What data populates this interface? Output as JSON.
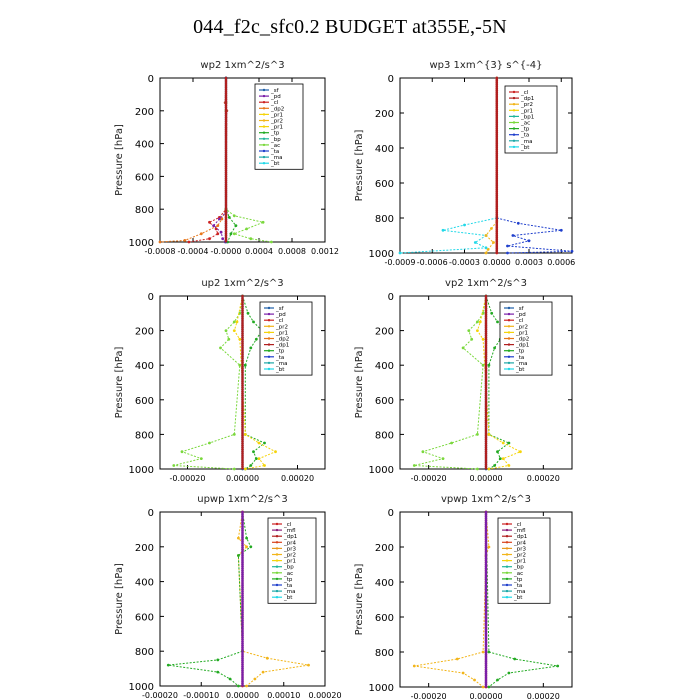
{
  "title": "044_f2c_sfc0.2  BUDGET at355E,-5N",
  "colors": {
    "_sf": "#1f5fa8",
    "_pd": "#7a1fa8",
    "_cl": "#cc2222",
    "_dp2": "#e8761a",
    "_pr1": "#f5d40a",
    "_pr2": "#f2b51a",
    "_tp": "#22aa22",
    "_bp": "#1fb59a",
    "_ac": "#7ad83c",
    "_ta": "#1f3fcc",
    "_ma": "#1fa8a8",
    "_bt": "#22d8e8",
    "_dp1": "#b01f1f",
    "_mfl": "#8a1f7a",
    "_pr4": "#d8441f",
    "_pr3": "#e89a1f",
    "_pr4b": "#d8441f"
  },
  "chart_data": [
    {
      "type": "line",
      "title": "wp2   1xm^2/s^3",
      "ylabel": "Pressure  [hPa]",
      "xlim": [
        -0.0008,
        0.0012
      ],
      "ylim": [
        1000,
        0
      ],
      "xticks": [
        -0.0008,
        -0.0004,
        0.0,
        0.0004,
        0.0008,
        0.0012
      ],
      "xticklabels": [
        "-0.0008",
        "-0.0004",
        "-0.0000",
        "0.0004",
        "0.0008",
        "0.0012"
      ],
      "yticks": [
        0,
        200,
        400,
        600,
        800,
        1000
      ],
      "legend": [
        "_sf",
        "_pd",
        "_cl",
        "_dp2",
        "_pr1",
        "_pr2",
        "_pr1",
        "_tp",
        "_bp",
        "_ac",
        "_ta",
        "_ma",
        "_bt"
      ],
      "series": [
        {
          "name": "_cl",
          "p": [
            0,
            150,
            200,
            800,
            850,
            880,
            920,
            950,
            980,
            1000
          ],
          "v": [
            0,
            -1e-05,
            1e-05,
            0,
            -8e-05,
            -0.0002,
            -0.00012,
            -0.0001,
            -0.0002,
            -0.00045
          ]
        },
        {
          "name": "_dp2",
          "p": [
            0,
            800,
            860,
            900,
            950,
            990,
            1000
          ],
          "v": [
            0,
            0,
            -5e-05,
            -0.0001,
            -0.0003,
            -0.0005,
            -0.0008
          ]
        },
        {
          "name": "_ac",
          "p": [
            0,
            150,
            200,
            800,
            840,
            880,
            920,
            950,
            980,
            1000
          ],
          "v": [
            0,
            0,
            0,
            0,
            0.0001,
            0.00045,
            0.00025,
            0.0001,
            0.0003,
            0.00055
          ]
        },
        {
          "name": "_tp",
          "p": [
            0,
            800,
            850,
            900,
            950,
            1000
          ],
          "v": [
            0,
            0,
            4e-05,
            0.00012,
            6e-05,
            2e-05
          ]
        },
        {
          "name": "_pd",
          "p": [
            0,
            820,
            860,
            900,
            940,
            980,
            1000
          ],
          "v": [
            0,
            0,
            -8e-05,
            -0.00015,
            -6e-05,
            -4e-05,
            -1e-05
          ]
        },
        {
          "name": "_sf",
          "p": [
            0,
            1000
          ],
          "v": [
            0,
            0
          ]
        }
      ]
    },
    {
      "type": "line",
      "title": "wp3   1xm^{3} s^{-4}",
      "ylabel": "Pressure  [hPa]",
      "xlim": [
        -0.0009,
        0.0007
      ],
      "ylim": [
        1000,
        0
      ],
      "xticks": [
        -0.0009,
        -0.0006,
        -0.0003,
        0.0,
        0.0003,
        0.0006
      ],
      "xticklabels": [
        "-0.0009",
        "-0.0006",
        "-0.0003",
        "0.0000",
        "0.0003",
        "0.0006"
      ],
      "yticks": [
        0,
        200,
        400,
        600,
        800,
        1000
      ],
      "legend": [
        "_cl",
        "_dp1",
        "_pr2",
        "_pr1",
        "_bp1",
        "_ac",
        "_tp",
        "_ta",
        "_ma",
        "_bt"
      ],
      "series": [
        {
          "name": "_ta",
          "p": [
            0,
            800,
            830,
            870,
            900,
            930,
            960,
            990,
            1000
          ],
          "v": [
            0,
            0,
            0.0002,
            0.0006,
            0.00015,
            0.0003,
            0.0001,
            0.0007,
            0.0001
          ]
        },
        {
          "name": "_bt",
          "p": [
            0,
            800,
            840,
            870,
            900,
            940,
            970,
            1000
          ],
          "v": [
            0,
            0,
            -0.0003,
            -0.0005,
            -0.0001,
            -0.0002,
            -0.0001,
            -0.0009
          ]
        },
        {
          "name": "_pr2",
          "p": [
            0,
            820,
            860,
            900,
            940,
            980,
            1000
          ],
          "v": [
            0,
            0,
            -5e-05,
            -0.0001,
            -3e-05,
            -8e-05,
            -0.0001
          ]
        },
        {
          "name": "_cl",
          "p": [
            0,
            1000
          ],
          "v": [
            0,
            0
          ]
        }
      ]
    },
    {
      "type": "line",
      "title": "up2    1xm^2/s^3",
      "ylabel": "Pressure  [hPa]",
      "xlim": [
        -0.0003,
        0.0003
      ],
      "ylim": [
        1000,
        0
      ],
      "xticks": [
        -0.0002,
        0.0,
        0.0002
      ],
      "xticklabels": [
        "-0.00020",
        "0.00000",
        "0.00020"
      ],
      "yticks": [
        0,
        200,
        400,
        600,
        800,
        1000
      ],
      "legend": [
        "_sf",
        "_pd",
        "_cl",
        "_pr2",
        "_pr1",
        "_dp2",
        "_dp1",
        "_tp",
        "_ta",
        "_ma",
        "_bt"
      ],
      "series": [
        {
          "name": "_ac",
          "p": [
            0,
            100,
            150,
            200,
            250,
            300,
            400,
            800,
            850,
            900,
            940,
            980,
            1000
          ],
          "v": [
            0,
            -1e-05,
            -3e-05,
            -6e-05,
            -5e-05,
            -8e-05,
            -1e-05,
            -3e-05,
            -0.00012,
            -0.00022,
            -0.00015,
            -0.00025,
            -3e-05
          ]
        },
        {
          "name": "_tp",
          "p": [
            0,
            100,
            150,
            200,
            250,
            300,
            400,
            800,
            850,
            900,
            940,
            980,
            1000
          ],
          "v": [
            0,
            2e-05,
            4e-05,
            7e-05,
            5e-05,
            3e-05,
            1e-05,
            1e-05,
            8e-05,
            4e-05,
            5e-05,
            3e-05,
            1e-05
          ]
        },
        {
          "name": "_pr1",
          "p": [
            0,
            150,
            200,
            250,
            800,
            850,
            900,
            940,
            980,
            1000
          ],
          "v": [
            0,
            -2e-05,
            -3e-05,
            -1e-05,
            1e-05,
            6e-05,
            0.00012,
            6e-05,
            8e-05,
            1e-05
          ]
        },
        {
          "name": "_sf",
          "p": [
            0,
            1000
          ],
          "v": [
            0,
            0
          ]
        }
      ]
    },
    {
      "type": "line",
      "title": "vp2    1xm^2/s^3",
      "ylabel": "Pressure  [hPa]",
      "xlim": [
        -0.0003,
        0.0003
      ],
      "ylim": [
        1000,
        0
      ],
      "xticks": [
        -0.0002,
        0.0,
        0.0002
      ],
      "xticklabels": [
        "-0.00020",
        "0.00000",
        "0.00020"
      ],
      "yticks": [
        0,
        200,
        400,
        600,
        800,
        1000
      ],
      "legend": [
        "_sf",
        "_pd",
        "_cl",
        "_pr2",
        "_pr1",
        "_dp2",
        "_dp1",
        "_tp",
        "_ta",
        "_ma",
        "_bt"
      ],
      "series": [
        {
          "name": "_ac",
          "p": [
            0,
            100,
            150,
            200,
            250,
            300,
            400,
            800,
            850,
            900,
            940,
            980,
            1000
          ],
          "v": [
            0,
            -1e-05,
            -3e-05,
            -6e-05,
            -5e-05,
            -8e-05,
            -1e-05,
            -3e-05,
            -0.00012,
            -0.00022,
            -0.00015,
            -0.00025,
            -3e-05
          ]
        },
        {
          "name": "_tp",
          "p": [
            0,
            100,
            150,
            200,
            250,
            300,
            400,
            800,
            850,
            900,
            940,
            980,
            1000
          ],
          "v": [
            0,
            2e-05,
            4e-05,
            7e-05,
            5e-05,
            3e-05,
            1e-05,
            1e-05,
            8e-05,
            4e-05,
            5e-05,
            3e-05,
            1e-05
          ]
        },
        {
          "name": "_pr1",
          "p": [
            0,
            150,
            200,
            250,
            800,
            850,
            900,
            940,
            980,
            1000
          ],
          "v": [
            0,
            -2e-05,
            -3e-05,
            -1e-05,
            1e-05,
            6e-05,
            0.00012,
            6e-05,
            8e-05,
            1e-05
          ]
        },
        {
          "name": "_sf",
          "p": [
            0,
            1000
          ],
          "v": [
            0,
            0
          ]
        }
      ]
    },
    {
      "type": "line",
      "title": "upwp   1xm^2/s^3",
      "ylabel": "Pressure  [hPa]",
      "xlim": [
        -0.0002,
        0.0002
      ],
      "ylim": [
        1000,
        0
      ],
      "xticks": [
        -0.0002,
        -0.0001,
        0.0,
        0.0001,
        0.0002
      ],
      "xticklabels": [
        "-0.00020",
        "-0.00010",
        "0.00000",
        "0.00010",
        "0.00020"
      ],
      "yticks": [
        0,
        200,
        400,
        600,
        800,
        1000
      ],
      "legend": [
        "_cl",
        "_mfl",
        "_dp1",
        "_pr4",
        "_pr3",
        "_pr2",
        "_pr1",
        "_bp",
        "_ac",
        "_tp",
        "_ta",
        "_ma",
        "_bt"
      ],
      "series": [
        {
          "name": "_pr2",
          "p": [
            0,
            150,
            200,
            250,
            800,
            840,
            880,
            920,
            960,
            1000
          ],
          "v": [
            0,
            -1e-05,
            1e-05,
            -1e-05,
            0,
            6e-05,
            0.00016,
            5e-05,
            3e-05,
            1e-05
          ]
        },
        {
          "name": "_tp",
          "p": [
            0,
            150,
            200,
            250,
            800,
            850,
            880,
            920,
            960,
            1000
          ],
          "v": [
            0,
            1e-05,
            2e-05,
            -1e-05,
            0,
            -6e-05,
            -0.00018,
            -6e-05,
            -3e-05,
            -1e-05
          ]
        },
        {
          "name": "_cl",
          "p": [
            0,
            1000
          ],
          "v": [
            0,
            0
          ]
        }
      ]
    },
    {
      "type": "line",
      "title": "vpwp   1xm^2/s^3",
      "ylabel": "Pressure  [hPa]",
      "xlim": [
        -0.0003,
        0.0003
      ],
      "ylim": [
        1000,
        0
      ],
      "xticks": [
        -0.0002,
        0.0,
        0.0002
      ],
      "xticklabels": [
        "-0.00020",
        "0.00000",
        "0.00020"
      ],
      "yticks": [
        0,
        200,
        400,
        600,
        800,
        1000
      ],
      "legend": [
        "_cl",
        "_mfl",
        "_dp1",
        "_pr4",
        "_pr3",
        "_pr2",
        "_pr1",
        "_bp",
        "_ac",
        "_tp",
        "_ta",
        "_ma",
        "_bt"
      ],
      "series": [
        {
          "name": "_pr2",
          "p": [
            0,
            200,
            250,
            800,
            840,
            880,
            920,
            960,
            1000
          ],
          "v": [
            0,
            1e-05,
            0,
            -1e-05,
            -0.0001,
            -0.00025,
            -8e-05,
            -4e-05,
            -1e-05
          ]
        },
        {
          "name": "_tp",
          "p": [
            0,
            800,
            840,
            880,
            920,
            960,
            1000
          ],
          "v": [
            0,
            1e-05,
            0.0001,
            0.00025,
            8e-05,
            4e-05,
            1e-05
          ]
        },
        {
          "name": "_cl",
          "p": [
            0,
            1000
          ],
          "v": [
            0,
            0
          ]
        }
      ]
    }
  ]
}
